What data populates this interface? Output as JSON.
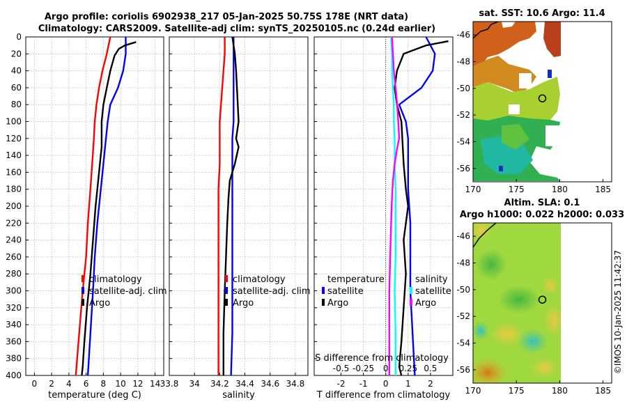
{
  "figure": {
    "title_line1": "Argo profile: coriolis 6902938_217 05-Jan-2025 50.75S 178E (NRT data)",
    "title_line2": "Climatology: CARS2009. Satellite-adj clim: synTS_20250105.nc (0.24d earlier)",
    "watermark": "©IMOS 10-Jan-2025 11:42:37",
    "colors": {
      "climatology": "#ff0000",
      "satellite": "#0000ff",
      "argo": "#000000",
      "sat_salinity": "#00ffff",
      "argo_salinity": "#ff00ff"
    }
  },
  "chart_data": [
    {
      "type": "line",
      "title": "",
      "xlabel": "temperature (deg C)",
      "ylabel": "",
      "xlim": [
        -1,
        15
      ],
      "ylim": [
        400,
        0
      ],
      "xticks": [
        0,
        2,
        4,
        6,
        8,
        10,
        12,
        14
      ],
      "xtick_labels": [
        "0",
        "2",
        "4",
        "6",
        "8",
        "10",
        "12",
        "14"
      ],
      "yticks": [
        0,
        20,
        40,
        60,
        80,
        100,
        120,
        140,
        160,
        180,
        200,
        220,
        240,
        260,
        280,
        300,
        320,
        340,
        360,
        380,
        400
      ],
      "ytick_labels": [
        "0",
        "20",
        "40",
        "60",
        "80",
        "100",
        "120",
        "140",
        "160",
        "180",
        "200",
        "220",
        "240",
        "260",
        "280",
        "300",
        "320",
        "340",
        "360",
        "380",
        "400"
      ],
      "grid": true,
      "legend": [
        "climatology",
        "satellite-adj. clim",
        "Argo"
      ],
      "series": [
        {
          "name": "climatology",
          "x": [
            8.8,
            8.4,
            7.9,
            7.5,
            7.2,
            7.0,
            6.9,
            6.7,
            6.5,
            6.2,
            6.0,
            5.6,
            5.2,
            4.8
          ],
          "y": [
            0,
            20,
            40,
            60,
            80,
            100,
            120,
            150,
            180,
            220,
            260,
            300,
            350,
            400
          ]
        },
        {
          "name": "satellite-adj. clim",
          "x": [
            10.6,
            10.6,
            10.3,
            9.7,
            8.8,
            8.5,
            8.3,
            8.0,
            7.7,
            7.3,
            7.0,
            6.8,
            6.5,
            6.2
          ],
          "y": [
            0,
            20,
            40,
            60,
            80,
            100,
            120,
            150,
            180,
            220,
            260,
            300,
            350,
            400
          ]
        },
        {
          "name": "Argo",
          "x": [
            11.8,
            10.5,
            9.8,
            9.3,
            8.8,
            8.4,
            8.0,
            7.8,
            7.8,
            7.6,
            7.3,
            7.1,
            6.8,
            6.5,
            6.1,
            5.8,
            5.6,
            5.5
          ],
          "y": [
            6,
            10,
            14,
            22,
            40,
            60,
            80,
            100,
            130,
            150,
            180,
            200,
            240,
            280,
            320,
            360,
            390,
            400
          ]
        }
      ]
    },
    {
      "type": "line",
      "xlabel": "salinity",
      "xlim": [
        33.8,
        34.9
      ],
      "ylim": [
        400,
        0
      ],
      "xticks": [
        33.8,
        34,
        34.2,
        34.4,
        34.6,
        34.8
      ],
      "xtick_labels": [
        "33.8",
        "34",
        "34.2",
        "34.4",
        "34.6",
        "34.8"
      ],
      "grid": true,
      "legend": [
        "climatology",
        "satellite-adj. clim",
        "Argo"
      ],
      "series": [
        {
          "name": "climatology",
          "x": [
            34.24,
            34.24,
            34.23,
            34.22,
            34.21,
            34.2,
            34.2,
            34.2,
            34.19,
            34.19,
            34.19,
            34.19,
            34.19,
            34.19
          ],
          "y": [
            0,
            20,
            40,
            60,
            80,
            100,
            120,
            150,
            180,
            220,
            260,
            300,
            350,
            400
          ]
        },
        {
          "name": "satellite-adj. clim",
          "x": [
            34.31,
            34.31,
            34.31,
            34.31,
            34.31,
            34.31,
            34.3,
            34.3,
            34.3,
            34.3,
            34.3,
            34.3,
            34.3,
            34.29
          ],
          "y": [
            0,
            20,
            40,
            60,
            80,
            100,
            120,
            150,
            180,
            220,
            260,
            300,
            350,
            400
          ]
        },
        {
          "name": "Argo",
          "x": [
            34.3,
            34.32,
            34.33,
            34.34,
            34.35,
            34.33,
            34.35,
            34.32,
            34.28,
            34.27,
            34.26,
            34.25,
            34.24,
            34.23,
            34.23
          ],
          "y": [
            0,
            20,
            40,
            70,
            100,
            120,
            130,
            150,
            170,
            190,
            220,
            260,
            300,
            350,
            400
          ]
        }
      ]
    },
    {
      "type": "line",
      "xlabel": "T difference from climatology",
      "xlim": [
        -3.2,
        3.0
      ],
      "ylim": [
        400,
        0
      ],
      "xticks": [
        -2,
        -1,
        0,
        1,
        2
      ],
      "xtick_labels": [
        "-2",
        "-1",
        "0",
        "1",
        "2"
      ],
      "top_axis_label": "S difference from climatology",
      "top_xticks": [
        -0.5,
        -0.25,
        0,
        0.25,
        0.5
      ],
      "top_xtick_labels": [
        "-0.5",
        "-0.25",
        "0",
        "0.25",
        "0.5"
      ],
      "grid": true,
      "legend_left_title": "temperature",
      "legend_left": [
        "satellite",
        "Argo"
      ],
      "legend_right_title": "salinity",
      "legend_right": [
        "satellite",
        "Argo"
      ],
      "series": [
        {
          "name": "temperature satellite",
          "x": [
            1.8,
            2.2,
            2.1,
            1.6,
            0.6,
            0.9,
            1.0,
            1.0,
            1.0,
            1.1,
            1.1,
            1.1,
            1.2,
            1.3
          ],
          "y": [
            0,
            20,
            40,
            60,
            80,
            100,
            120,
            150,
            180,
            220,
            260,
            300,
            350,
            400
          ]
        },
        {
          "name": "temperature Argo",
          "x": [
            2.8,
            1.8,
            0.8,
            0.5,
            0.4,
            0.5,
            0.7,
            0.8,
            0.9,
            1.0,
            0.8,
            0.9,
            0.8,
            0.7,
            0.6,
            0.7
          ],
          "y": [
            5,
            10,
            20,
            40,
            60,
            80,
            100,
            150,
            180,
            200,
            240,
            280,
            320,
            360,
            390,
            400
          ]
        },
        {
          "name": "salinity satellite",
          "x": [
            0.06,
            0.07,
            0.07,
            0.08,
            0.09,
            0.09,
            0.1,
            0.1,
            0.11,
            0.11,
            0.11,
            0.1,
            0.11,
            0.11
          ],
          "y": [
            0,
            20,
            40,
            60,
            80,
            100,
            120,
            150,
            180,
            220,
            260,
            300,
            350,
            400
          ]
        },
        {
          "name": "salinity Argo",
          "x": [
            0.07,
            0.08,
            0.09,
            0.12,
            0.14,
            0.15,
            0.13,
            0.1,
            0.08,
            0.07,
            0.06,
            0.05,
            0.04,
            0.04,
            0.04
          ],
          "y": [
            0,
            20,
            40,
            70,
            100,
            120,
            130,
            150,
            170,
            190,
            220,
            260,
            300,
            350,
            400
          ]
        }
      ]
    },
    {
      "type": "heatmap",
      "title": "sat. SST: 10.6 Argo: 11.4",
      "xlim": [
        170,
        186
      ],
      "ylim": [
        -57,
        -45
      ],
      "xticks": [
        170,
        175,
        180,
        185
      ],
      "xtick_labels": [
        "170",
        "175",
        "180",
        "185"
      ],
      "yticks": [
        -46,
        -48,
        -50,
        -52,
        -54,
        -56
      ],
      "ytick_labels": [
        "-46",
        "-48",
        "-50",
        "-52",
        "-54",
        "-56"
      ],
      "marker": {
        "lon": 178,
        "lat": -50.75
      }
    },
    {
      "type": "heatmap",
      "title_line1": "Altim. SLA: 0.1",
      "title_line2": "Argo h1000: 0.022 h2000: 0.033",
      "xlim": [
        170,
        186
      ],
      "ylim": [
        -57,
        -45
      ],
      "xticks": [
        170,
        175,
        180,
        185
      ],
      "xtick_labels": [
        "170",
        "175",
        "180",
        "185"
      ],
      "yticks": [
        -46,
        -48,
        -50,
        -52,
        -54,
        -56
      ],
      "ytick_labels": [
        "-46",
        "-48",
        "-50",
        "-52",
        "-54",
        "-56"
      ],
      "marker": {
        "lon": 178,
        "lat": -50.75
      }
    }
  ]
}
